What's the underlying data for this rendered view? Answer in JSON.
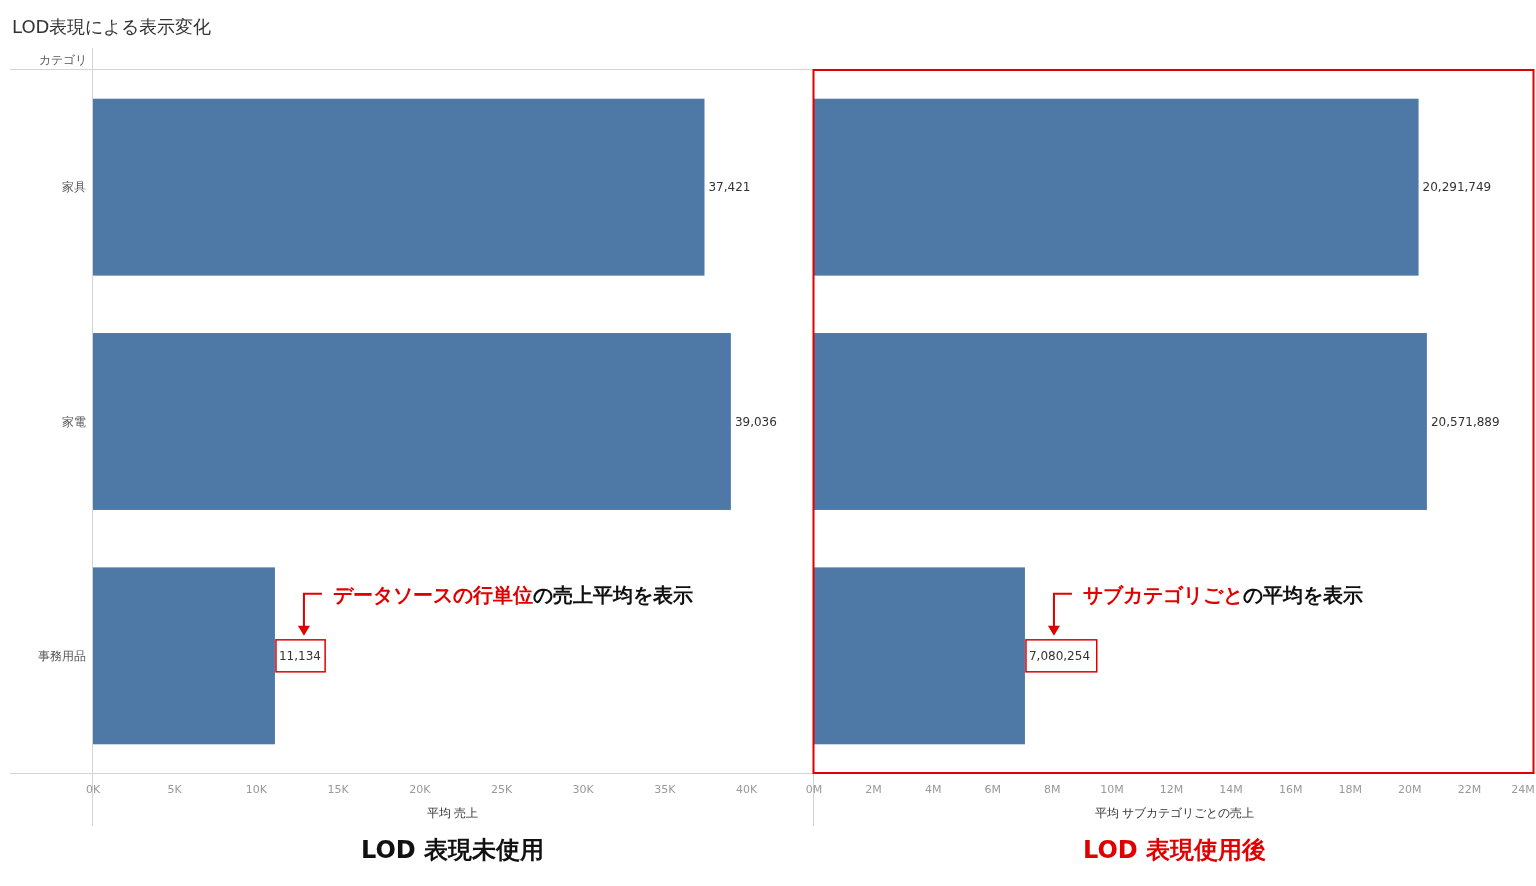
{
  "chart_data": [
    {
      "type": "bar",
      "orientation": "horizontal",
      "title": "LOD表現による表示変化",
      "ylabel": "カテゴリ",
      "xlabel": "平均 売上",
      "categories": [
        "家具",
        "家電",
        "事務用品"
      ],
      "values": [
        37421,
        39036,
        11134
      ],
      "color": "#4e79a7",
      "xlim": [
        0,
        44000
      ],
      "xticks": [
        {
          "value": 0,
          "label": "0K"
        },
        {
          "value": 5000,
          "label": "5K"
        },
        {
          "value": 10000,
          "label": "10K"
        },
        {
          "value": 15000,
          "label": "15K"
        },
        {
          "value": 20000,
          "label": "20K"
        },
        {
          "value": 25000,
          "label": "25K"
        },
        {
          "value": 30000,
          "label": "30K"
        },
        {
          "value": 35000,
          "label": "35K"
        },
        {
          "value": 40000,
          "label": "40K"
        }
      ],
      "value_labels": [
        "37,421",
        "39,036",
        "11,134"
      ],
      "annotations": [
        "データソースの行単位",
        "の売上平均を表示",
        "LOD 表現未使用"
      ]
    },
    {
      "type": "bar",
      "orientation": "horizontal",
      "xlabel": "平均 サブカテゴリごとの売上",
      "categories": [
        null,
        null,
        null
      ],
      "values": [
        20291749,
        20571889,
        7080254
      ],
      "color": "#4e79a7",
      "xlim": [
        0,
        24200000
      ],
      "xticks": [
        {
          "value": 0,
          "label": "0M"
        },
        {
          "value": 2000000,
          "label": "2M"
        },
        {
          "value": 4000000,
          "label": "4M"
        },
        {
          "value": 6000000,
          "label": "6M"
        },
        {
          "value": 8000000,
          "label": "8M"
        },
        {
          "value": 10000000,
          "label": "10M"
        },
        {
          "value": 12000000,
          "label": "12M"
        },
        {
          "value": 14000000,
          "label": "14M"
        },
        {
          "value": 16000000,
          "label": "16M"
        },
        {
          "value": 18000000,
          "label": "18M"
        },
        {
          "value": 20000000,
          "label": "20M"
        },
        {
          "value": 22000000,
          "label": "22M"
        },
        {
          "value": 24000000,
          "label": "24M"
        }
      ],
      "value_labels": [
        "20,291,749",
        "20,571,889",
        "7,080,254"
      ],
      "tick_labels": "x",
      "annotations": [
        "サブカテゴリごと",
        "の平均を表示",
        "LOD 表現使用後"
      ]
    }
  ]
}
